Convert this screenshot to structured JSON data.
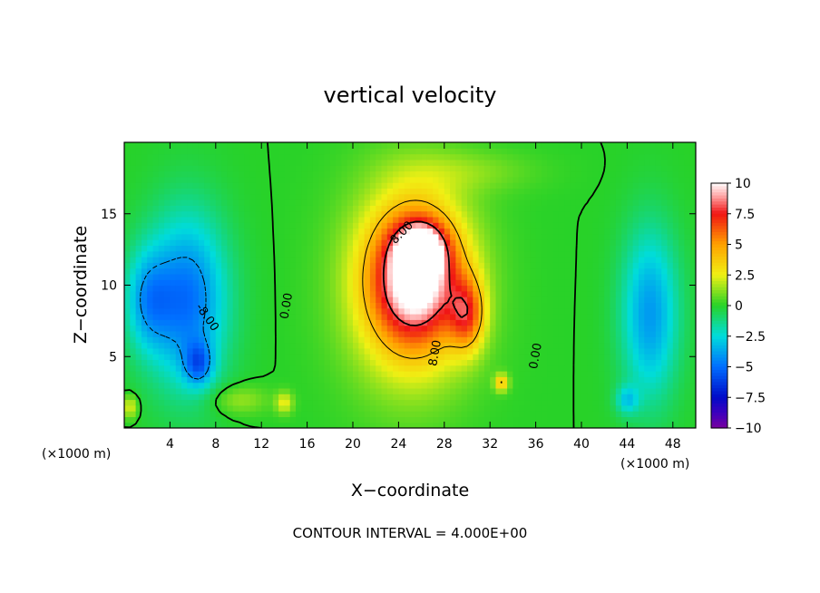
{
  "chart_data": {
    "type": "heatmap",
    "title": "vertical velocity",
    "xlabel": "X−coordinate",
    "ylabel": "Z−coordinate",
    "x_unit_left": "(×1000 m)",
    "x_unit_right": "(×1000 m)",
    "footer": "CONTOUR INTERVAL = 4.000E+00",
    "xlim": [
      0,
      50
    ],
    "ylim": [
      0,
      20
    ],
    "x_ticks": [
      4,
      8,
      12,
      16,
      20,
      24,
      28,
      32,
      36,
      40,
      44,
      48
    ],
    "x_tick_labels": [
      "4",
      "8",
      "12",
      "16",
      "20",
      "24",
      "28",
      "32",
      "36",
      "40",
      "44",
      "48"
    ],
    "y_ticks": [
      5,
      10,
      15
    ],
    "y_tick_labels": [
      "5",
      "10",
      "15"
    ],
    "colorbar": {
      "min": -10,
      "max": 10,
      "ticks": [
        10,
        7.5,
        5,
        2.5,
        0,
        -2.5,
        -5,
        -7.5,
        -10
      ],
      "tick_labels": [
        "10",
        "7.5",
        "5",
        "2.5",
        "0",
        "−2.5",
        "−5",
        "−7.5",
        "−10"
      ]
    },
    "contour_interval": 4,
    "contour_labels": [
      {
        "text": "0.00",
        "x": 14.5,
        "y": 8.5,
        "angle": -80
      },
      {
        "text": "0.00",
        "x": 36.3,
        "y": 5,
        "angle": -80
      },
      {
        "text": "8.00",
        "x": 24.5,
        "y": 13.5,
        "angle": -45
      },
      {
        "text": "8.00",
        "x": 27.5,
        "y": 5.2,
        "angle": -80
      },
      {
        "text": "-8.00",
        "x": 7,
        "y": 7.6,
        "angle": 55
      }
    ],
    "features": [
      {
        "x": 25.5,
        "z": 10.5,
        "w": 7.5,
        "h": 9
      },
      {
        "x": 26,
        "z": 12.5,
        "w": 4,
        "h": 3.5
      },
      {
        "x": 30,
        "z": 8,
        "w": 3,
        "h": 5
      },
      {
        "x": 33,
        "z": 3.2,
        "w": 1.2,
        "h": 1.2
      },
      {
        "x": 25,
        "z": 10,
        "w": 11,
        "h": 14
      },
      {
        "x": 6.5,
        "z": 4.5,
        "w": 2.5,
        "h": 3
      },
      {
        "x": 5.5,
        "z": 9,
        "w": 7,
        "h": 12
      },
      {
        "x": 2,
        "z": 9,
        "w": 4,
        "h": 7
      },
      {
        "x": 46,
        "z": 8,
        "w": 5,
        "h": 12
      },
      {
        "x": 44,
        "z": 2,
        "w": 2,
        "h": 2
      },
      {
        "x": 14,
        "z": 1.8,
        "w": 1.5,
        "h": 1.5
      },
      {
        "x": 0.5,
        "z": 1.5,
        "w": 1.3,
        "h": 1.5
      },
      {
        "x": 30,
        "z": 18,
        "w": 12,
        "h": 3
      },
      {
        "x": 10,
        "z": 2,
        "w": 5,
        "h": 2
      }
    ],
    "feature_amplitudes": [
      8,
      6,
      5,
      4,
      4,
      -3.5,
      -5,
      -3,
      -4,
      -2.5,
      2.5,
      2.5,
      1,
      1.5
    ]
  }
}
